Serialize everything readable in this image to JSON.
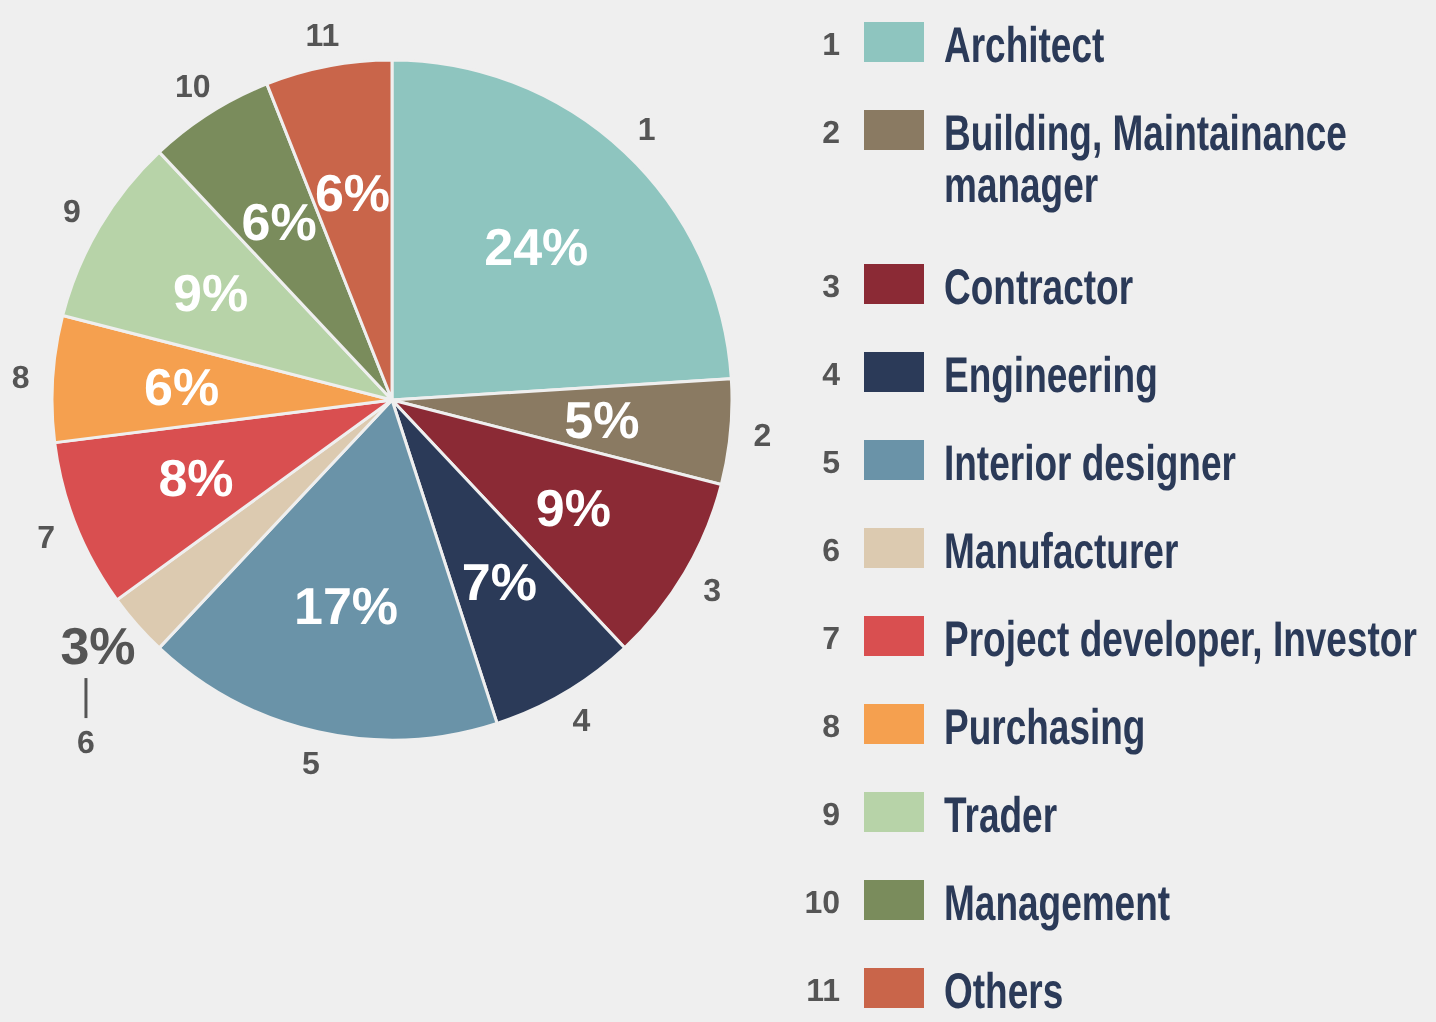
{
  "chart_data": {
    "type": "pie",
    "categories": [
      "Architect",
      "Building, Maintainance manager",
      "Contractor",
      "Engineering",
      "Interior designer",
      "Manufacturer",
      "Project developer, Investor",
      "Purchasing",
      "Trader",
      "Management",
      "Others"
    ],
    "values": [
      24,
      5,
      9,
      7,
      17,
      3,
      8,
      6,
      9,
      6,
      6
    ],
    "value_labels": [
      "24%",
      "5%",
      "9%",
      "7%",
      "17%",
      "3%",
      "8%",
      "6%",
      "9%",
      "6%",
      "6%"
    ],
    "colors": [
      "#8ec5bf",
      "#8a7a62",
      "#8b2a35",
      "#2b3a58",
      "#6a93a8",
      "#dccab0",
      "#d94f50",
      "#f5a04f",
      "#b7d3a8",
      "#7a8c5c",
      "#c9654a"
    ],
    "annotations": [
      "1",
      "2",
      "3",
      "4",
      "5",
      "6",
      "7",
      "8",
      "9",
      "10",
      "11"
    ],
    "legend": "right"
  }
}
